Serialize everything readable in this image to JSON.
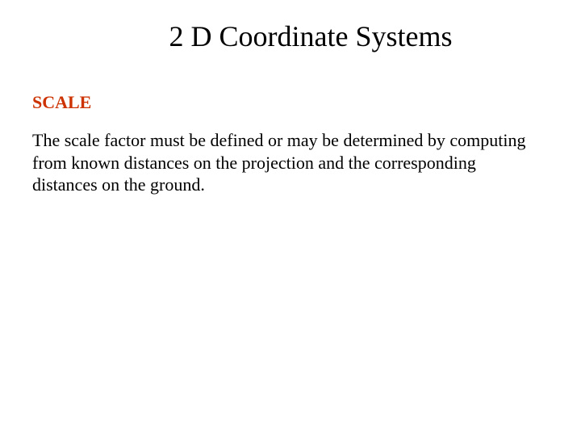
{
  "slide": {
    "title": "2 D Coordinate Systems",
    "section_heading": "SCALE",
    "body_text": "The scale factor must be defined or may be determined by computing from known distances on the projection and the corresponding distances on the ground."
  },
  "styles": {
    "background_color": "#ffffff",
    "title_color": "#000000",
    "title_fontsize": 36,
    "heading_color": "#cc3300",
    "heading_fontsize": 22,
    "body_color": "#000000",
    "body_fontsize": 22,
    "font_family": "Times New Roman"
  }
}
